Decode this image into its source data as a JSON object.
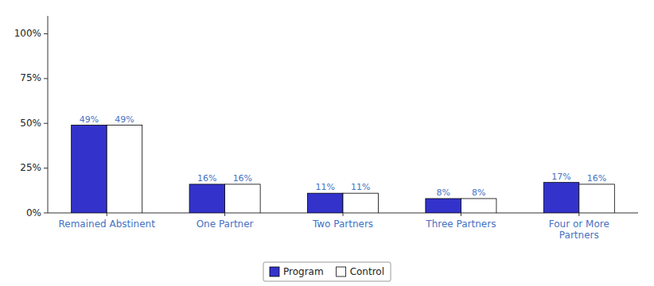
{
  "chart_data": {
    "type": "bar",
    "categories": [
      "Remained Abstinent",
      "One Partner",
      "Two Partners",
      "Three Partners",
      "Four or More\nPartners"
    ],
    "series": [
      {
        "name": "Program",
        "color": "#3333CC",
        "values": [
          49,
          16,
          11,
          8,
          17
        ],
        "value_labels": [
          "49%",
          "16%",
          "11%",
          "8%",
          "17%"
        ]
      },
      {
        "name": "Control",
        "color": "#FFFFFF",
        "values": [
          49,
          16,
          11,
          8,
          16
        ],
        "value_labels": [
          "49%",
          "16%",
          "11%",
          "8%",
          "16%"
        ]
      }
    ],
    "ylim": [
      0,
      110
    ],
    "yticks": [
      {
        "value": 0,
        "label": "0%"
      },
      {
        "value": 25,
        "label": "25%"
      },
      {
        "value": 50,
        "label": "50%"
      },
      {
        "value": 75,
        "label": "75%"
      },
      {
        "value": 100,
        "label": "100%"
      }
    ],
    "grid": false,
    "legend": "bottom",
    "data_labels": true
  }
}
